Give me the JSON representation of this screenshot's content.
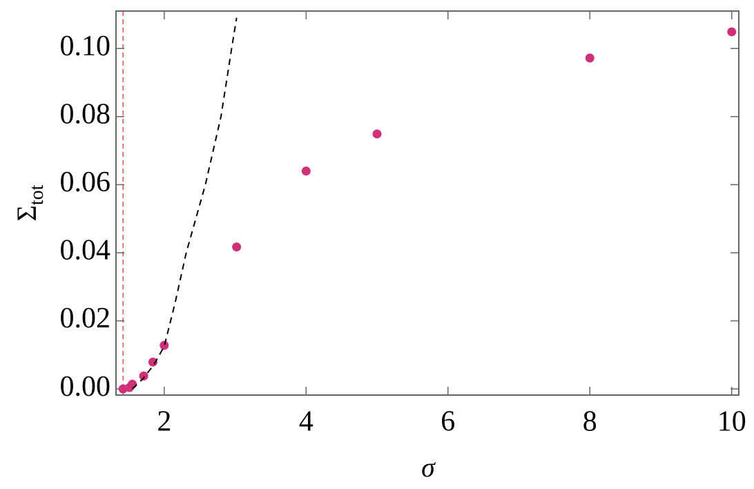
{
  "chart_data": {
    "type": "scatter",
    "xlabel": "σ",
    "ylabel": "Σ",
    "ylabel_subscript": "tot",
    "xlim": [
      1.32,
      10.1
    ],
    "ylim": [
      -0.0018,
      0.111
    ],
    "xticks": [
      2,
      4,
      6,
      8,
      10
    ],
    "yticks": [
      {
        "value": 0,
        "label": "0.00"
      },
      0.02,
      0.04,
      0.06,
      0.08,
      {
        "value": 0.1,
        "label": "0.10"
      }
    ],
    "series": [
      {
        "color": "#d0307a",
        "x": [
          1.42,
          1.51,
          1.55,
          1.71,
          1.84,
          2,
          3.02,
          4,
          5,
          8,
          10
        ],
        "values": [
          0,
          0.0004,
          0.0014,
          0.0038,
          0.0079,
          0.0128,
          0.0417,
          0.064,
          0.0749,
          0.0972,
          0.1049
        ]
      },
      {
        "style": "dashed-line",
        "color": "#000000",
        "x": [
          1.55,
          1.7,
          1.85,
          2,
          2.15,
          2.31,
          2.58,
          2.8,
          2.95,
          3.02
        ],
        "values": [
          0,
          0.003,
          0.007,
          0.0125,
          0.025,
          0.04,
          0.06,
          0.08,
          0.1,
          0.109
        ]
      }
    ],
    "vline": {
      "x": 1.42,
      "color": "#e07070"
    }
  }
}
